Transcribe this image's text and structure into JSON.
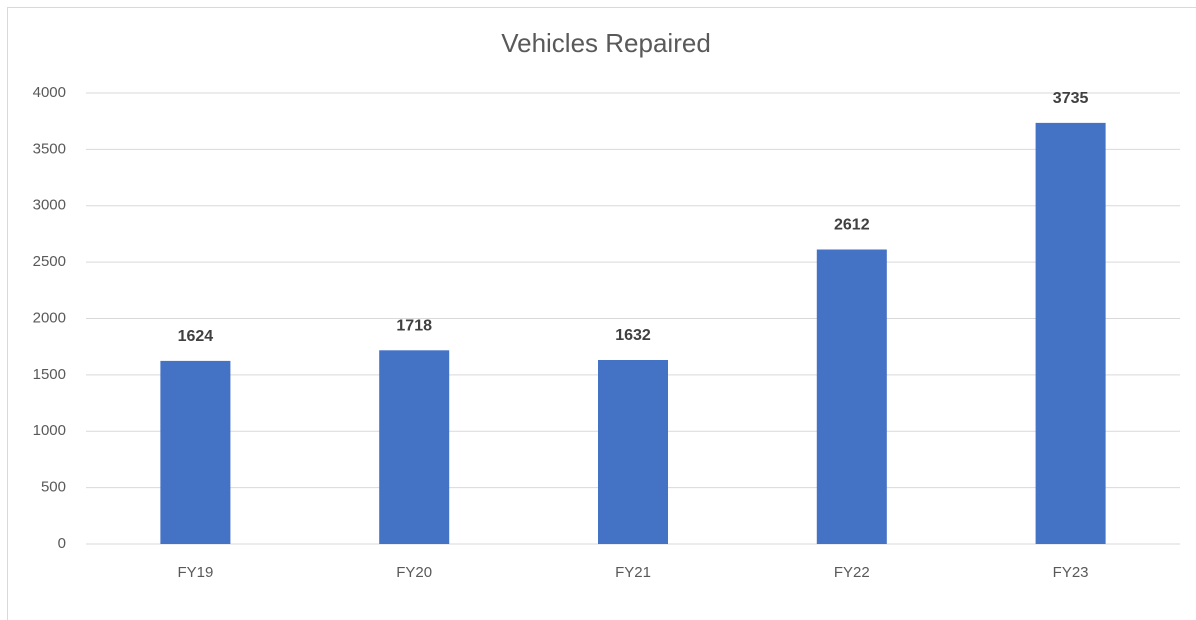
{
  "chart_data": {
    "type": "bar",
    "title": "Vehicles Repaired",
    "categories": [
      "FY19",
      "FY20",
      "FY21",
      "FY22",
      "FY23"
    ],
    "values": [
      1624,
      1718,
      1632,
      2612,
      3735
    ],
    "color": "#4472c4",
    "ylim": [
      0,
      4000
    ],
    "yticks": [
      0,
      500,
      1000,
      1500,
      2000,
      2500,
      3000,
      3500,
      4000
    ],
    "grid": true
  }
}
